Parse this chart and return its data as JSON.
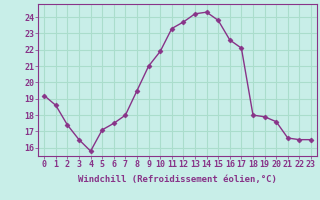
{
  "x": [
    0,
    1,
    2,
    3,
    4,
    5,
    6,
    7,
    8,
    9,
    10,
    11,
    12,
    13,
    14,
    15,
    16,
    17,
    18,
    19,
    20,
    21,
    22,
    23
  ],
  "y": [
    19.2,
    18.6,
    17.4,
    16.5,
    15.8,
    17.1,
    17.5,
    18.0,
    19.5,
    21.0,
    21.9,
    23.3,
    23.7,
    24.2,
    24.3,
    23.8,
    22.6,
    22.1,
    18.0,
    17.9,
    17.6,
    16.6,
    16.5,
    16.5
  ],
  "line_color": "#883388",
  "marker": "D",
  "markersize": 2.5,
  "linewidth": 1.0,
  "bg_color": "#c8eee8",
  "grid_color": "#aaddcc",
  "xlabel": "Windchill (Refroidissement éolien,°C)",
  "xlabel_fontsize": 6.5,
  "tick_fontsize": 6.0,
  "ylim": [
    15.5,
    24.8
  ],
  "xlim": [
    -0.5,
    23.5
  ],
  "yticks": [
    16,
    17,
    18,
    19,
    20,
    21,
    22,
    23,
    24
  ],
  "xtick_labels": [
    "0",
    "1",
    "2",
    "3",
    "4",
    "5",
    "6",
    "7",
    "8",
    "9",
    "10",
    "11",
    "12",
    "13",
    "14",
    "15",
    "16",
    "17",
    "18",
    "19",
    "20",
    "21",
    "22",
    "23"
  ]
}
